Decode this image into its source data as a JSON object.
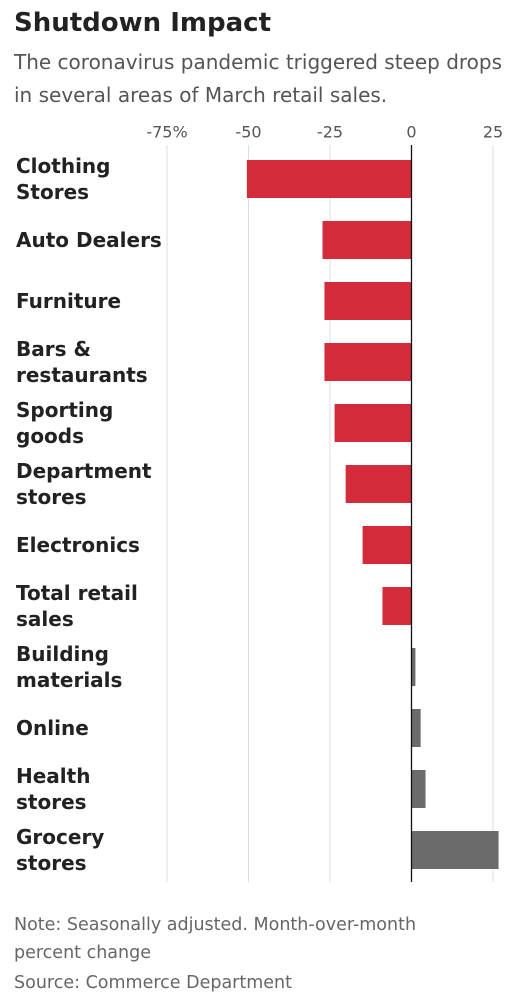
{
  "chart_data": {
    "type": "barh",
    "title": "Shutdown Impact",
    "subtitle": "The coronavirus pandemic triggered steep drops in several areas of March retail sales.",
    "categories": [
      "Clothing\nStores",
      "Auto Dealers",
      "Furniture",
      "Bars &\nrestaurants",
      "Sporting\ngoods",
      "Department\nstores",
      "Electronics",
      "Total retail\nsales",
      "Building\nmaterials",
      "Online",
      "Health\nstores",
      "Grocery\nstores"
    ],
    "values": [
      -50.5,
      -27.3,
      -26.7,
      -26.7,
      -23.6,
      -20.2,
      -15.0,
      -8.9,
      1.2,
      2.8,
      4.3,
      26.7
    ],
    "negative_color": "#d42b3c",
    "positive_color": "#6b6b6b",
    "xlim": [
      -75,
      28
    ],
    "xticks": [
      {
        "value": -75,
        "label": "-75%"
      },
      -50,
      -25,
      0,
      25
    ],
    "grid": true,
    "notes": [
      "Note: Seasonally adjusted. Month-over-month percent change",
      "Source: Commerce Department"
    ]
  }
}
